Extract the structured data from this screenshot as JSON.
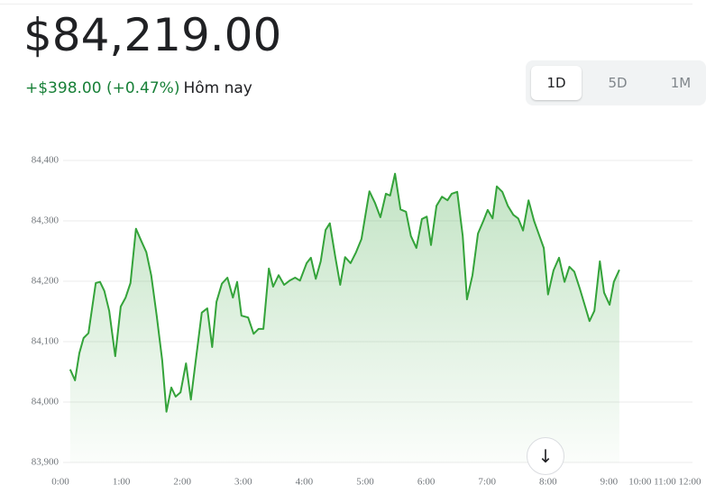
{
  "header": {
    "price": "$84,219.00",
    "change": "+$398.00 (+0.47%)",
    "period": "Hôm nay"
  },
  "tabs": [
    "1D",
    "5D",
    "1M"
  ],
  "chart_data": {
    "type": "line",
    "color": "#34a33a",
    "x": [
      0.16,
      0.24,
      0.31,
      0.38,
      0.46,
      0.58,
      0.65,
      0.72,
      0.8,
      0.9,
      0.99,
      1.07,
      1.15,
      1.24,
      1.33,
      1.41,
      1.49,
      1.58,
      1.67,
      1.74,
      1.82,
      1.89,
      1.97,
      2.06,
      2.14,
      2.23,
      2.32,
      2.41,
      2.49,
      2.56,
      2.65,
      2.74,
      2.83,
      2.9,
      2.97,
      3.08,
      3.17,
      3.25,
      3.33,
      3.42,
      3.49,
      3.58,
      3.67,
      3.76,
      3.85,
      3.93,
      4.04,
      4.11,
      4.19,
      4.27,
      4.35,
      4.42,
      4.51,
      4.59,
      4.67,
      4.76,
      4.85,
      4.94,
      5.0,
      5.07,
      5.16,
      5.25,
      5.34,
      5.41,
      5.49,
      5.58,
      5.67,
      5.75,
      5.84,
      5.93,
      6.01,
      6.08,
      6.17,
      6.26,
      6.35,
      6.42,
      6.51,
      6.6,
      6.67,
      6.76,
      6.85,
      6.94,
      7.01,
      7.09,
      7.16,
      7.25,
      7.34,
      7.43,
      7.51,
      7.59,
      7.68,
      7.77,
      7.86,
      7.93,
      8.0,
      8.09,
      8.18,
      8.27,
      8.35,
      8.43,
      8.52,
      8.61,
      8.68,
      8.76,
      8.85,
      8.92,
      9.01,
      9.08,
      9.17
    ],
    "values": [
      84054,
      84036,
      84081,
      84106,
      84114,
      84197,
      84199,
      84184,
      84151,
      84076,
      84158,
      84173,
      84197,
      84287,
      84266,
      84248,
      84210,
      84143,
      84069,
      83984,
      84024,
      84009,
      84016,
      84064,
      84004,
      84076,
      84148,
      84155,
      84091,
      84166,
      84196,
      84206,
      84173,
      84199,
      84143,
      84140,
      84113,
      84121,
      84121,
      84221,
      84191,
      84210,
      84194,
      84201,
      84206,
      84201,
      84230,
      84239,
      84204,
      84233,
      84285,
      84296,
      84240,
      84194,
      84240,
      84230,
      84248,
      84270,
      84307,
      84349,
      84330,
      84306,
      84345,
      84342,
      84378,
      84319,
      84315,
      84275,
      84255,
      84303,
      84307,
      84260,
      84325,
      84340,
      84334,
      84345,
      84348,
      84275,
      84170,
      84210,
      84279,
      84300,
      84318,
      84304,
      84357,
      84348,
      84325,
      84310,
      84304,
      84284,
      84334,
      84300,
      84275,
      84255,
      84178,
      84218,
      84239,
      84199,
      84224,
      84216,
      84188,
      84158,
      84134,
      84151,
      84233,
      84181,
      84161,
      84199,
      84219
    ],
    "xlim": [
      0,
      12
    ],
    "xticks": [
      {
        "value": 0,
        "label": "0:00"
      },
      {
        "value": 1,
        "label": "1:00"
      },
      {
        "value": 2,
        "label": "2:00"
      },
      {
        "value": 3,
        "label": "3:00"
      },
      {
        "value": 4,
        "label": "4:00"
      },
      {
        "value": 5,
        "label": "5:00"
      },
      {
        "value": 6,
        "label": "6:00"
      },
      {
        "value": 7,
        "label": "7:00"
      },
      {
        "value": 8,
        "label": "8:00"
      },
      {
        "value": 9,
        "label": "9:00"
      },
      {
        "value": 10,
        "label": "10:00"
      },
      {
        "value": 11,
        "label": "11:00"
      },
      {
        "value": 12,
        "label": "12:00"
      }
    ],
    "ylim": [
      83900,
      84400
    ],
    "yticks": [
      {
        "value": 83900,
        "label": "83,900"
      },
      {
        "value": 84000,
        "label": "84,000"
      },
      {
        "value": 84100,
        "label": "84,100"
      },
      {
        "value": 84200,
        "label": "84,200"
      },
      {
        "value": 84300,
        "label": "84,300"
      },
      {
        "value": 84400,
        "label": "84,400"
      }
    ],
    "grid": true
  }
}
